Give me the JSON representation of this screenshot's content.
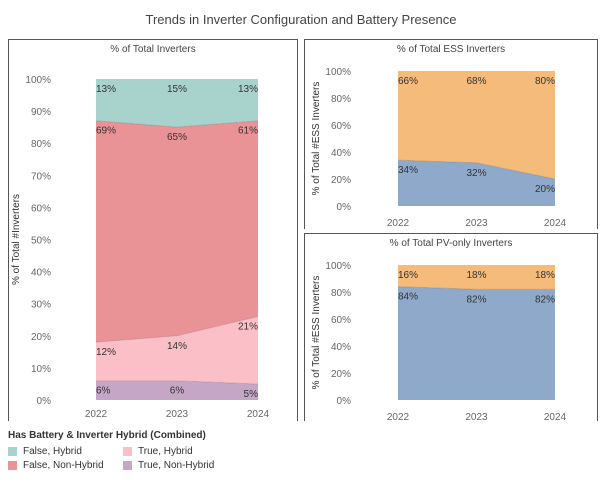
{
  "title": "Trends in Inverter Configuration and Battery Presence",
  "colors": {
    "false_hybrid": "#a8d3cc",
    "false_non_hybrid": "#e99396",
    "true_hybrid": "#fbc0c7",
    "true_non_hybrid": "#c6a6c6",
    "ess_hybrid": "#f5bb7b",
    "ess_non_hybrid": "#8ea9c9"
  },
  "legend": {
    "title": "Has Battery & Inverter Hybrid (Combined)",
    "items": [
      {
        "label": "False, Hybrid",
        "color": "#a8d3cc"
      },
      {
        "label": "True, Hybrid",
        "color": "#fbc0c7"
      },
      {
        "label": "False, Non-Hybrid",
        "color": "#e99396"
      },
      {
        "label": "True, Non-Hybrid",
        "color": "#c6a6c6"
      }
    ]
  },
  "chart_data": [
    {
      "type": "area",
      "title": "% of Total Inverters",
      "ylabel": "% of Total #Inverters",
      "x": [
        "2022",
        "2023",
        "2024"
      ],
      "ylim": [
        0,
        100
      ],
      "yticks": [
        "0%",
        "10%",
        "20%",
        "30%",
        "40%",
        "50%",
        "60%",
        "70%",
        "80%",
        "90%",
        "100%"
      ],
      "series": [
        {
          "name": "True, Non-Hybrid",
          "values": [
            6,
            6,
            5
          ],
          "labels": [
            "6%",
            "6%",
            "5%"
          ],
          "color": "#c6a6c6"
        },
        {
          "name": "True, Hybrid",
          "values": [
            12,
            14,
            21
          ],
          "labels": [
            "12%",
            "14%",
            "21%"
          ],
          "color": "#fbc0c7"
        },
        {
          "name": "False, Non-Hybrid",
          "values": [
            69,
            65,
            61
          ],
          "labels": [
            "69%",
            "65%",
            "61%"
          ],
          "color": "#e99396"
        },
        {
          "name": "False, Hybrid",
          "values": [
            13,
            15,
            13
          ],
          "labels": [
            "13%",
            "15%",
            "13%"
          ],
          "color": "#a8d3cc"
        }
      ]
    },
    {
      "type": "area",
      "title": "% of Total ESS Inverters",
      "ylabel": "% of Total #ESS Inverters",
      "x": [
        "2022",
        "2023",
        "2024"
      ],
      "ylim": [
        0,
        100
      ],
      "yticks": [
        "0%",
        "20%",
        "40%",
        "60%",
        "80%",
        "100%"
      ],
      "series": [
        {
          "values": [
            34,
            32,
            20
          ],
          "labels": [
            "34%",
            "32%",
            "20%"
          ],
          "color": "#8ea9c9"
        },
        {
          "values": [
            66,
            68,
            80
          ],
          "labels": [
            "66%",
            "68%",
            "80%"
          ],
          "color": "#f5bb7b"
        }
      ]
    },
    {
      "type": "area",
      "title": "% of Total PV-only Inverters",
      "ylabel": "% of Total #ESS Inverters",
      "x": [
        "2022",
        "2023",
        "2024"
      ],
      "ylim": [
        0,
        100
      ],
      "yticks": [
        "0%",
        "20%",
        "40%",
        "60%",
        "80%",
        "100%"
      ],
      "series": [
        {
          "values": [
            84,
            82,
            82
          ],
          "labels": [
            "84%",
            "82%",
            "82%"
          ],
          "color": "#8ea9c9"
        },
        {
          "values": [
            16,
            18,
            18
          ],
          "labels": [
            "16%",
            "18%",
            "18%"
          ],
          "color": "#f5bb7b"
        }
      ]
    }
  ]
}
